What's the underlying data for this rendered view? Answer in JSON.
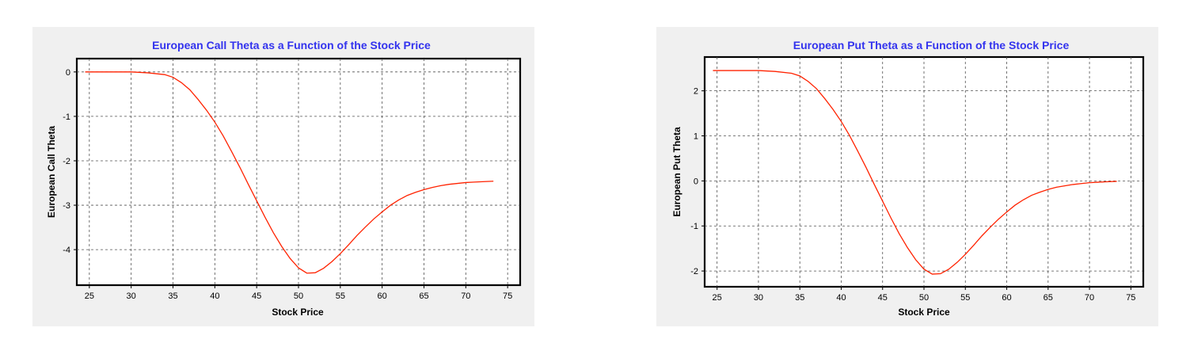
{
  "chart_data": [
    {
      "type": "line",
      "title": "European Call Theta as a Function of the Stock Price",
      "xlabel": "Stock Price",
      "ylabel": "European Call Theta",
      "xlim": [
        23.5,
        76.5
      ],
      "ylim": [
        -4.8,
        0.3
      ],
      "xticks": [
        25,
        30,
        35,
        40,
        45,
        50,
        55,
        60,
        65,
        70,
        75
      ],
      "yticks": [
        0,
        -1,
        -2,
        -3,
        -4
      ],
      "grid": true,
      "legend": "none",
      "series": [
        {
          "color": "#ff2200",
          "x": [
            24.5,
            27,
            30,
            32,
            34,
            35,
            36,
            37,
            38,
            39,
            40,
            41,
            42,
            43,
            44,
            45,
            46,
            47,
            48,
            49,
            50,
            51,
            52,
            53,
            54,
            55,
            56,
            57,
            58,
            59,
            60,
            61,
            62,
            63,
            64,
            65,
            66,
            67,
            68,
            69,
            70,
            71,
            72,
            73.3
          ],
          "y": [
            0,
            0,
            0,
            -0.02,
            -0.06,
            -0.12,
            -0.24,
            -0.4,
            -0.62,
            -0.86,
            -1.13,
            -1.44,
            -1.79,
            -2.15,
            -2.53,
            -2.9,
            -3.27,
            -3.62,
            -3.93,
            -4.2,
            -4.41,
            -4.53,
            -4.52,
            -4.42,
            -4.27,
            -4.09,
            -3.89,
            -3.68,
            -3.49,
            -3.31,
            -3.15,
            -3.0,
            -2.88,
            -2.78,
            -2.71,
            -2.65,
            -2.6,
            -2.56,
            -2.53,
            -2.51,
            -2.49,
            -2.48,
            -2.47,
            -2.46
          ]
        }
      ]
    },
    {
      "type": "line",
      "title": "European Put Theta as a Function of the Stock Price",
      "xlabel": "Stock Price",
      "ylabel": "European Put Theta",
      "xlim": [
        23.5,
        76.5
      ],
      "ylim": [
        -2.35,
        2.75
      ],
      "xticks": [
        25,
        30,
        35,
        40,
        45,
        50,
        55,
        60,
        65,
        70,
        75
      ],
      "yticks": [
        2,
        1,
        0,
        -1,
        -2
      ],
      "grid": true,
      "legend": "none",
      "series": [
        {
          "color": "#ff2200",
          "x": [
            24.5,
            27,
            30,
            32,
            34,
            35,
            36,
            37,
            38,
            39,
            40,
            41,
            42,
            43,
            44,
            45,
            46,
            47,
            48,
            49,
            50,
            51,
            52,
            53,
            54,
            55,
            56,
            57,
            58,
            59,
            60,
            61,
            62,
            63,
            64,
            65,
            66,
            67,
            68,
            69,
            70,
            71,
            72,
            73.3
          ],
          "y": [
            2.45,
            2.45,
            2.45,
            2.43,
            2.39,
            2.33,
            2.21,
            2.05,
            1.83,
            1.59,
            1.32,
            1.01,
            0.66,
            0.3,
            -0.08,
            -0.45,
            -0.82,
            -1.17,
            -1.48,
            -1.75,
            -1.96,
            -2.07,
            -2.06,
            -1.96,
            -1.81,
            -1.63,
            -1.43,
            -1.22,
            -1.03,
            -0.85,
            -0.69,
            -0.54,
            -0.42,
            -0.32,
            -0.25,
            -0.19,
            -0.14,
            -0.11,
            -0.08,
            -0.06,
            -0.04,
            -0.03,
            -0.02,
            -0.01
          ]
        }
      ]
    }
  ]
}
